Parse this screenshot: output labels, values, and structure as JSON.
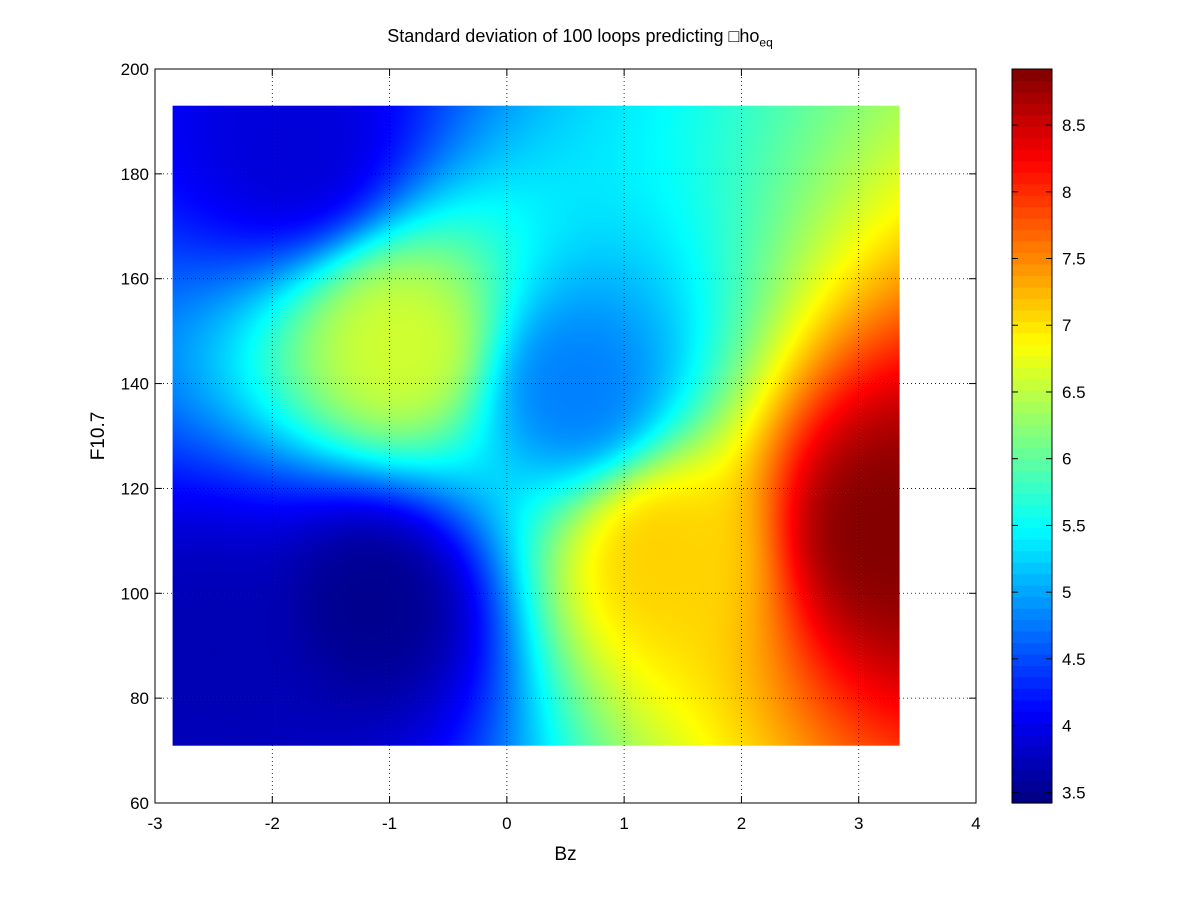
{
  "chart_data": {
    "type": "heatmap",
    "title_main": "Standard deviation of 100 loops predicting □ho",
    "title_sub": "eq",
    "xlabel": "Bz",
    "ylabel": "F10.7",
    "xlim": [
      -3,
      4
    ],
    "ylim": [
      60,
      200
    ],
    "x_ticks": [
      -3,
      -2,
      -1,
      0,
      1,
      2,
      3,
      4
    ],
    "y_ticks": [
      60,
      80,
      100,
      120,
      140,
      160,
      180,
      200
    ],
    "grid": true,
    "data_extent": {
      "x": [
        -2.85,
        3.35
      ],
      "y": [
        71,
        193
      ]
    },
    "colorbar": {
      "colormap": "jet",
      "range": [
        3.42,
        8.92
      ],
      "ticks": [
        3.5,
        4,
        4.5,
        5,
        5.5,
        6,
        6.5,
        7,
        7.5,
        8,
        8.5
      ],
      "tick_labels": [
        "3.5",
        "4",
        "4.5",
        "5",
        "5.5",
        "6",
        "6.5",
        "7",
        "7.5",
        "8",
        "8.5"
      ],
      "placement": "right"
    },
    "features": [
      {
        "bz": 3.25,
        "f107": 112,
        "value": 8.9,
        "label": "maximum (right edge)"
      },
      {
        "bz": 1.35,
        "f107": 107,
        "value": 7.1,
        "label": "local maximum"
      },
      {
        "bz": -0.9,
        "f107": 147,
        "value": 6.6,
        "label": "ridge"
      },
      {
        "bz": 0.6,
        "f107": 139,
        "value": 4.8,
        "label": "local minimum"
      },
      {
        "bz": -1.15,
        "f107": 98,
        "value": 3.5,
        "label": "minimum"
      },
      {
        "bz": -1.8,
        "f107": 185,
        "value": 3.9,
        "label": "low region (top-left)"
      },
      {
        "bz": -2.5,
        "f107": 89,
        "value": 3.7,
        "label": "low region (bottom-left)"
      }
    ]
  }
}
